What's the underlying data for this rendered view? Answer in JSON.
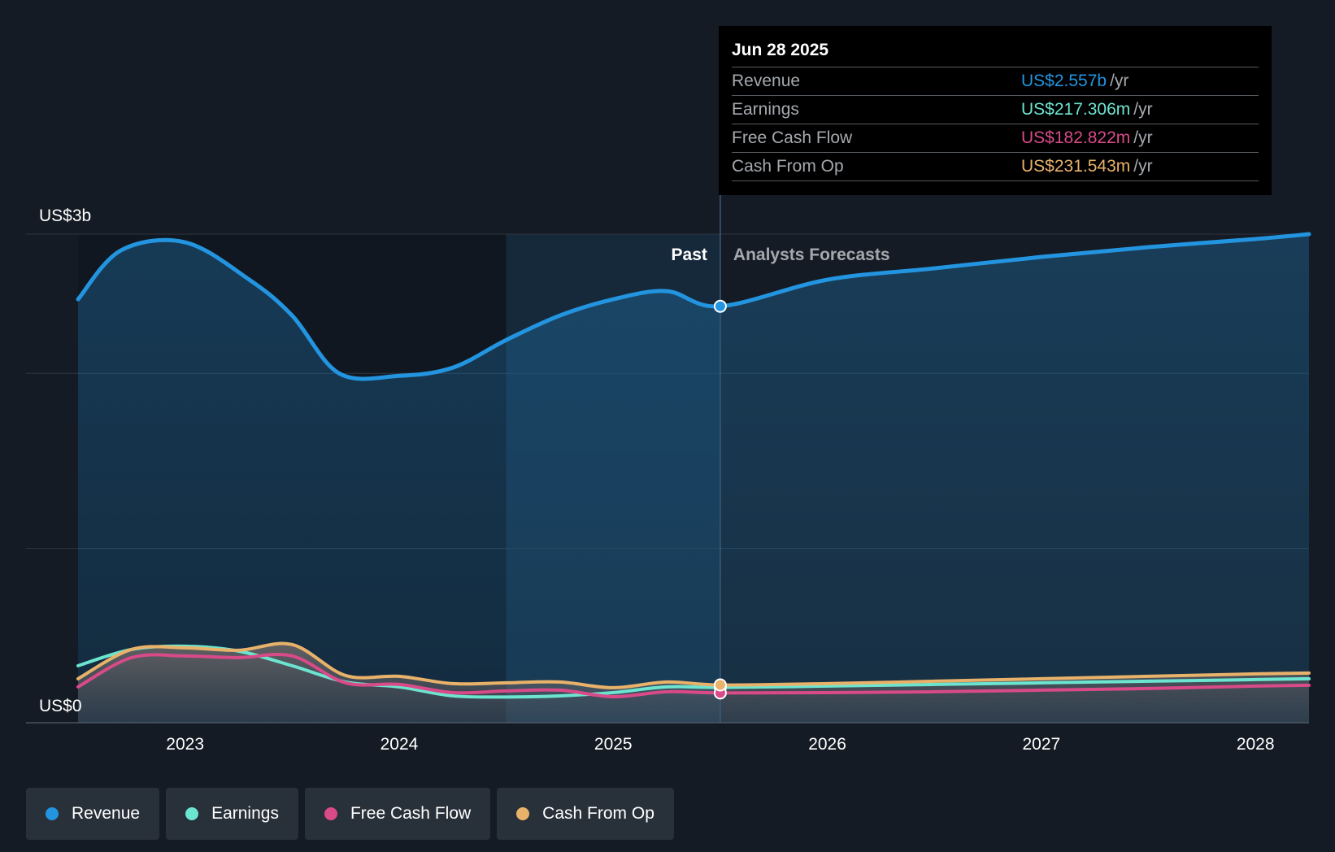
{
  "colors": {
    "background": "#151b24",
    "revenue": "#2394df",
    "earnings": "#6ce5d0",
    "free_cash_flow": "#d94a88",
    "cash_from_op": "#e9b26a"
  },
  "tooltip": {
    "date": "Jun 28 2025",
    "rows": [
      {
        "label": "Revenue",
        "value": "US$2.557b",
        "unit": "/yr",
        "color": "#2394df"
      },
      {
        "label": "Earnings",
        "value": "US$217.306m",
        "unit": "/yr",
        "color": "#6ce5d0"
      },
      {
        "label": "Free Cash Flow",
        "value": "US$182.822m",
        "unit": "/yr",
        "color": "#d94a88"
      },
      {
        "label": "Cash From Op",
        "value": "US$231.543m",
        "unit": "/yr",
        "color": "#e9b26a"
      }
    ]
  },
  "legend": [
    {
      "label": "Revenue",
      "color": "#2394df"
    },
    {
      "label": "Earnings",
      "color": "#6ce5d0"
    },
    {
      "label": "Free Cash Flow",
      "color": "#d94a88"
    },
    {
      "label": "Cash From Op",
      "color": "#e9b26a"
    }
  ],
  "chart_data": {
    "type": "area",
    "x_unit": "year",
    "xlim": [
      2022.5,
      2028.25
    ],
    "ylim": [
      0,
      3000
    ],
    "y_unit": "US$ m",
    "ytick_labels": [
      {
        "value": 3000,
        "label": "US$3b"
      },
      {
        "value": 0,
        "label": "US$0"
      }
    ],
    "gridlines_y": [
      0,
      1070,
      2145,
      3000
    ],
    "xticks": [
      {
        "value": 2023,
        "label": "2023"
      },
      {
        "value": 2024,
        "label": "2024"
      },
      {
        "value": 2025,
        "label": "2025"
      },
      {
        "value": 2026,
        "label": "2026"
      },
      {
        "value": 2027,
        "label": "2027"
      },
      {
        "value": 2028,
        "label": "2028"
      }
    ],
    "past_label": "Past",
    "forecast_label": "Analysts Forecasts",
    "divider_x": 2025.5,
    "highlight_start_x": 2024.5,
    "legend_position": "bottom",
    "series": [
      {
        "name": "Revenue",
        "key": "revenue",
        "points": [
          [
            2022.5,
            2600
          ],
          [
            2022.7,
            2900
          ],
          [
            2023.0,
            2950
          ],
          [
            2023.3,
            2720
          ],
          [
            2023.5,
            2500
          ],
          [
            2023.72,
            2145
          ],
          [
            2024.0,
            2130
          ],
          [
            2024.25,
            2180
          ],
          [
            2024.5,
            2350
          ],
          [
            2024.75,
            2500
          ],
          [
            2025.0,
            2600
          ],
          [
            2025.25,
            2650
          ],
          [
            2025.5,
            2557
          ],
          [
            2026.0,
            2720
          ],
          [
            2026.5,
            2790
          ],
          [
            2027.0,
            2860
          ],
          [
            2027.5,
            2920
          ],
          [
            2028.0,
            2970
          ],
          [
            2028.25,
            3000
          ]
        ]
      },
      {
        "name": "Earnings",
        "key": "earnings",
        "points": [
          [
            2022.5,
            350
          ],
          [
            2022.75,
            450
          ],
          [
            2023.0,
            470
          ],
          [
            2023.25,
            440
          ],
          [
            2023.5,
            350
          ],
          [
            2023.75,
            250
          ],
          [
            2024.0,
            220
          ],
          [
            2024.25,
            165
          ],
          [
            2024.5,
            158
          ],
          [
            2024.75,
            165
          ],
          [
            2025.0,
            185
          ],
          [
            2025.25,
            220
          ],
          [
            2025.5,
            217
          ],
          [
            2026.0,
            225
          ],
          [
            2026.5,
            235
          ],
          [
            2027.0,
            245
          ],
          [
            2027.5,
            255
          ],
          [
            2028.0,
            265
          ],
          [
            2028.25,
            270
          ]
        ]
      },
      {
        "name": "Free Cash Flow",
        "key": "free_cash_flow",
        "points": [
          [
            2022.5,
            220
          ],
          [
            2022.75,
            400
          ],
          [
            2023.0,
            410
          ],
          [
            2023.25,
            400
          ],
          [
            2023.5,
            410
          ],
          [
            2023.75,
            245
          ],
          [
            2024.0,
            235
          ],
          [
            2024.25,
            185
          ],
          [
            2024.5,
            195
          ],
          [
            2024.75,
            200
          ],
          [
            2025.0,
            160
          ],
          [
            2025.25,
            190
          ],
          [
            2025.5,
            183
          ],
          [
            2026.0,
            185
          ],
          [
            2026.5,
            190
          ],
          [
            2027.0,
            200
          ],
          [
            2027.5,
            210
          ],
          [
            2028.0,
            225
          ],
          [
            2028.25,
            230
          ]
        ]
      },
      {
        "name": "Cash From Op",
        "key": "cash_from_op",
        "points": [
          [
            2022.5,
            270
          ],
          [
            2022.75,
            450
          ],
          [
            2023.0,
            460
          ],
          [
            2023.25,
            445
          ],
          [
            2023.5,
            480
          ],
          [
            2023.75,
            290
          ],
          [
            2024.0,
            285
          ],
          [
            2024.25,
            240
          ],
          [
            2024.5,
            245
          ],
          [
            2024.75,
            250
          ],
          [
            2025.0,
            215
          ],
          [
            2025.25,
            250
          ],
          [
            2025.5,
            232
          ],
          [
            2026.0,
            240
          ],
          [
            2026.5,
            255
          ],
          [
            2027.0,
            270
          ],
          [
            2027.5,
            285
          ],
          [
            2028.0,
            300
          ],
          [
            2028.25,
            305
          ]
        ]
      }
    ]
  }
}
